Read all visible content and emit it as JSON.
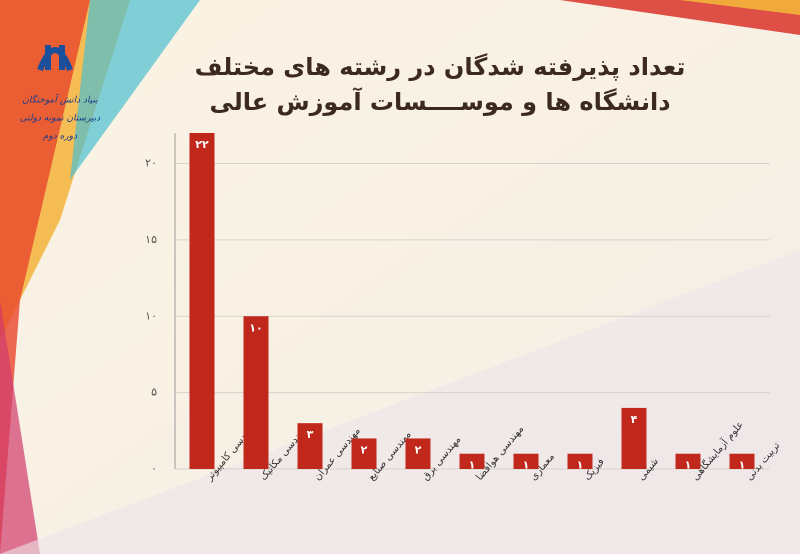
{
  "header": {
    "logo_lines": [
      "بنیاد دانش آموختگان",
      "دبیرستان نمونه دولتی",
      "دوره دوم"
    ]
  },
  "chart_data": {
    "type": "bar",
    "title": "تعداد پذیرفته شدگان در رشته های مختلف",
    "subtitle": "دانشگاه ها و موســــسات آموزش عالی",
    "categories": [
      "مهندسی کامپیوتر",
      "مهندسی مکانیک",
      "مهندسی عمران",
      "مهندسی صنایع",
      "مهندسی برق",
      "مهندسی هوافضا",
      "معماری",
      "فیزیک",
      "شیمی",
      "علوم آزمایشگاهی",
      "تربیت بدنی"
    ],
    "values": [
      22,
      10,
      3,
      2,
      2,
      1,
      1,
      1,
      4,
      1,
      1
    ],
    "value_labels": [
      "۲۲",
      "۱۰",
      "۳",
      "۲",
      "۲",
      "۱",
      "۱",
      "۱",
      "۴",
      "۱",
      "۱"
    ],
    "color": "#c0281c",
    "ylim": [
      0,
      22
    ],
    "yticks": [
      {
        "value": 0,
        "label": "۰"
      },
      {
        "value": 5,
        "label": "۵"
      },
      {
        "value": 10,
        "label": "۱۰"
      },
      {
        "value": 15,
        "label": "۱۵"
      },
      {
        "value": 20,
        "label": "۲۰"
      }
    ],
    "grid": true
  }
}
